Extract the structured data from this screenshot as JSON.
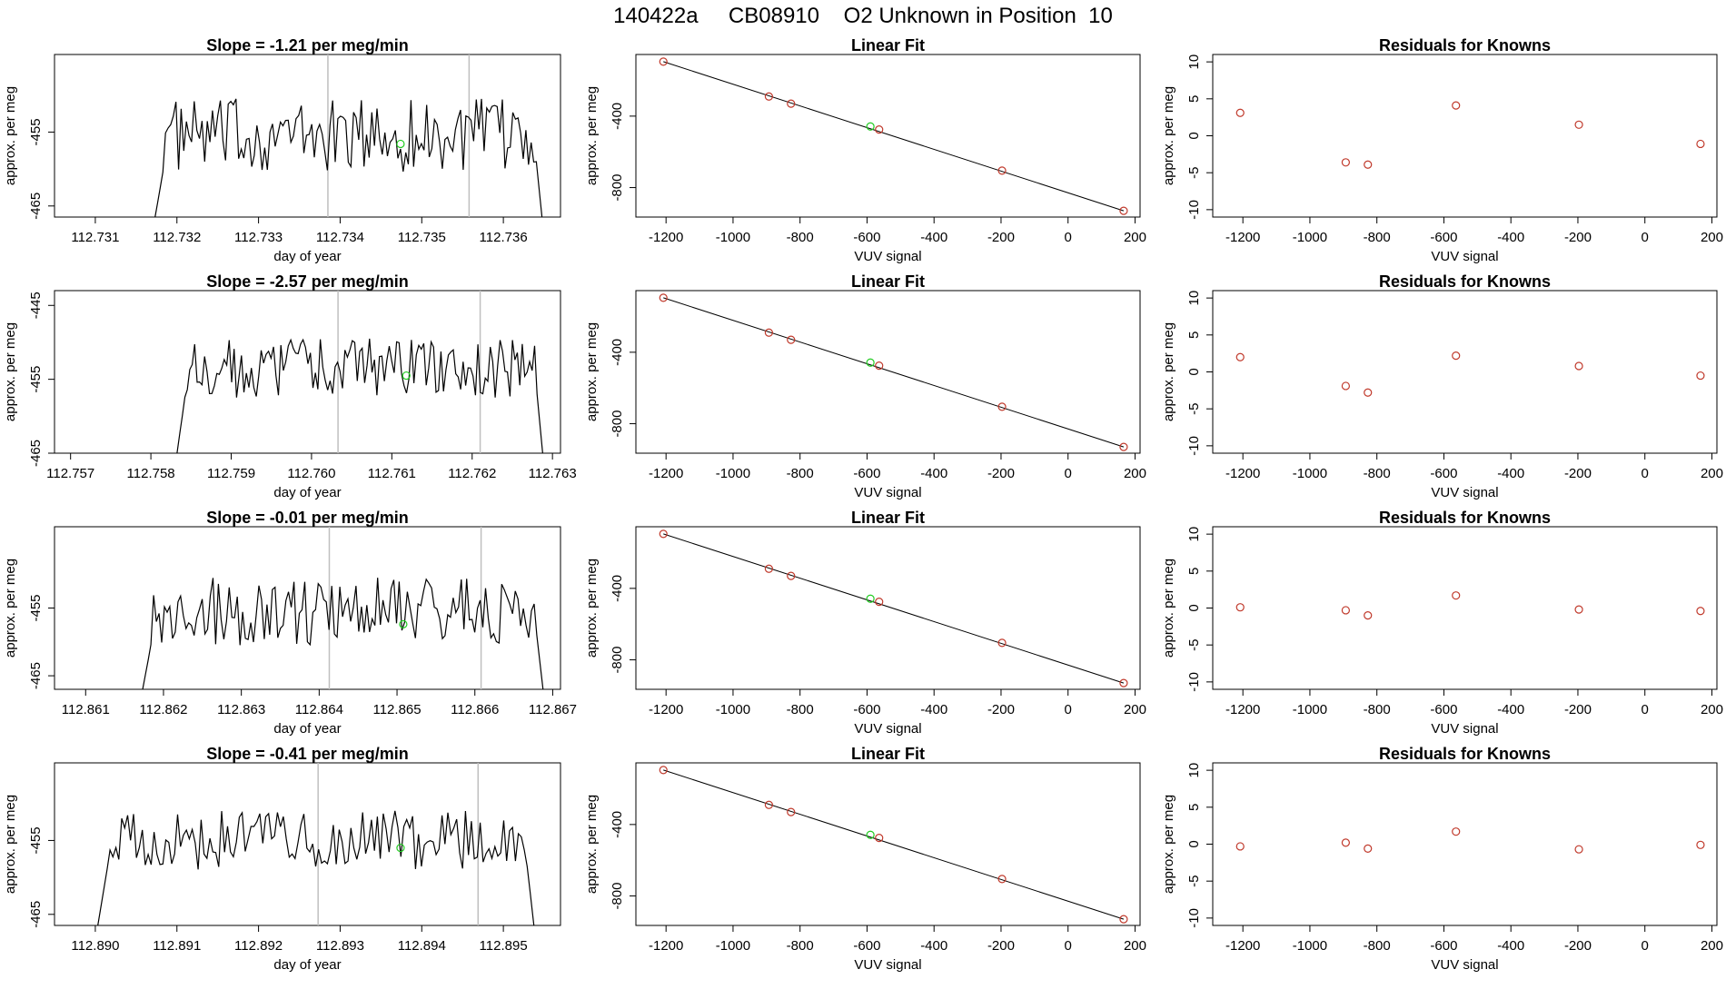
{
  "page_title": "140422a     CB08910    O2 Unknown in Position  10",
  "colors": {
    "trace": "#000000",
    "unknown_point": "#22cc22",
    "known_point": "#c0392b",
    "marker_line": "#bfbfbf"
  },
  "chart_data": [
    {
      "type": "line",
      "title": "Slope =  -1.21  per meg/min",
      "xlabel": "day of year",
      "ylabel": "approx. per meg",
      "xlim": [
        112.7305,
        112.7367
      ],
      "ylim": [
        -466.5,
        -444.5
      ],
      "xticks": [
        "112.731",
        "112.732",
        "112.733",
        "112.734",
        "112.735",
        "112.736"
      ],
      "yticks": [
        "-455",
        "-465"
      ],
      "trace_start": 112.7317,
      "trace_end": 112.7365,
      "trace_level": -455.5,
      "trace_amp": 5,
      "markers": [
        112.73385,
        112.73558
      ],
      "unknown_point": {
        "x": 112.73474,
        "y": -456.6
      }
    },
    {
      "type": "scatter",
      "title": "Linear Fit",
      "xlabel": "VUV signal",
      "ylabel": "approx. per meg",
      "xlim": [
        -1290,
        215
      ],
      "ylim": [
        -965,
        -55
      ],
      "xticks": [
        "-1200",
        "-1000",
        "-800",
        "-600",
        "-400",
        "-200",
        "0",
        "200"
      ],
      "yticks": [
        "-400",
        "-800"
      ],
      "knowns": [
        [
          -1208,
          -95
        ],
        [
          -893,
          -290
        ],
        [
          -827,
          -330
        ],
        [
          -564,
          -475
        ],
        [
          -197,
          -705
        ],
        [
          166,
          -930
        ]
      ],
      "fit_line": [
        [
          -1208,
          -95
        ],
        [
          166,
          -930
        ]
      ],
      "unknown_point": [
        -590,
        -458
      ]
    },
    {
      "type": "scatter",
      "title": "Residuals for Knowns",
      "xlabel": "VUV signal",
      "ylabel": "approx. per meg",
      "xlim": [
        -1290,
        215
      ],
      "ylim": [
        -11,
        11
      ],
      "xticks": [
        "-1200",
        "-1000",
        "-800",
        "-600",
        "-400",
        "-200",
        "0",
        "200"
      ],
      "yticks": [
        "10",
        "5",
        "0",
        "-5",
        "-10"
      ],
      "residuals": [
        [
          -1208,
          3.1
        ],
        [
          -893,
          -3.6
        ],
        [
          -827,
          -3.9
        ],
        [
          -564,
          4.1
        ],
        [
          -197,
          1.5
        ],
        [
          166,
          -1.1
        ]
      ]
    },
    {
      "type": "line",
      "title": "Slope =  -2.57  per meg/min",
      "xlabel": "day of year",
      "ylabel": "approx. per meg",
      "xlim": [
        112.7568,
        112.7631
      ],
      "ylim": [
        -465,
        -443
      ],
      "xticks": [
        "112.757",
        "112.758",
        "112.759",
        "112.760",
        "112.761",
        "112.762",
        "112.763"
      ],
      "yticks": [
        "-445",
        "-455",
        "-465"
      ],
      "trace_start": 112.7583,
      "trace_end": 112.7629,
      "trace_level": -453.5,
      "trace_amp": 4,
      "markers": [
        112.76033,
        112.7621
      ],
      "unknown_point": {
        "x": 112.76118,
        "y": -454.5
      }
    },
    {
      "type": "scatter",
      "title": "Linear Fit",
      "xlabel": "VUV signal",
      "ylabel": "approx. per meg",
      "xlim": [
        -1290,
        215
      ],
      "ylim": [
        -965,
        -55
      ],
      "xticks": [
        "-1200",
        "-1000",
        "-800",
        "-600",
        "-400",
        "-200",
        "0",
        "200"
      ],
      "yticks": [
        "-400",
        "-800"
      ],
      "knowns": [
        [
          -1208,
          -95
        ],
        [
          -893,
          -290
        ],
        [
          -827,
          -330
        ],
        [
          -564,
          -475
        ],
        [
          -197,
          -705
        ],
        [
          166,
          -930
        ]
      ],
      "fit_line": [
        [
          -1208,
          -95
        ],
        [
          166,
          -930
        ]
      ],
      "unknown_point": [
        -590,
        -458
      ]
    },
    {
      "type": "scatter",
      "title": "Residuals for Knowns",
      "xlabel": "VUV signal",
      "ylabel": "approx. per meg",
      "xlim": [
        -1290,
        215
      ],
      "ylim": [
        -11,
        11
      ],
      "xticks": [
        "-1200",
        "-1000",
        "-800",
        "-600",
        "-400",
        "-200",
        "0",
        "200"
      ],
      "yticks": [
        "10",
        "5",
        "0",
        "-5",
        "-10"
      ],
      "residuals": [
        [
          -1208,
          2.0
        ],
        [
          -893,
          -1.9
        ],
        [
          -827,
          -2.8
        ],
        [
          -564,
          2.2
        ],
        [
          -197,
          0.8
        ],
        [
          166,
          -0.5
        ]
      ]
    },
    {
      "type": "line",
      "title": "Slope =  -0.01  per meg/min",
      "xlabel": "day of year",
      "ylabel": "approx. per meg",
      "xlim": [
        112.8606,
        112.8671
      ],
      "ylim": [
        -467,
        -443
      ],
      "xticks": [
        "112.861",
        "112.862",
        "112.863",
        "112.864",
        "112.865",
        "112.866",
        "112.867"
      ],
      "yticks": [
        "-455",
        "-465"
      ],
      "trace_start": 112.8617,
      "trace_end": 112.8669,
      "trace_level": -455.5,
      "trace_amp": 5,
      "markers": [
        112.86413,
        112.86608
      ],
      "unknown_point": {
        "x": 112.86508,
        "y": -457.4
      }
    },
    {
      "type": "scatter",
      "title": "Linear Fit",
      "xlabel": "VUV signal",
      "ylabel": "approx. per meg",
      "xlim": [
        -1290,
        215
      ],
      "ylim": [
        -965,
        -55
      ],
      "xticks": [
        "-1200",
        "-1000",
        "-800",
        "-600",
        "-400",
        "-200",
        "0",
        "200"
      ],
      "yticks": [
        "-400",
        "-800"
      ],
      "knowns": [
        [
          -1208,
          -95
        ],
        [
          -893,
          -290
        ],
        [
          -827,
          -330
        ],
        [
          -564,
          -475
        ],
        [
          -197,
          -705
        ],
        [
          166,
          -930
        ]
      ],
      "fit_line": [
        [
          -1208,
          -95
        ],
        [
          166,
          -930
        ]
      ],
      "unknown_point": [
        -590,
        -458
      ]
    },
    {
      "type": "scatter",
      "title": "Residuals for Knowns",
      "xlabel": "VUV signal",
      "ylabel": "approx. per meg",
      "xlim": [
        -1290,
        215
      ],
      "ylim": [
        -11,
        11
      ],
      "xticks": [
        "-1200",
        "-1000",
        "-800",
        "-600",
        "-400",
        "-200",
        "0",
        "200"
      ],
      "yticks": [
        "10",
        "5",
        "0",
        "-5",
        "-10"
      ],
      "residuals": [
        [
          -1208,
          0.1
        ],
        [
          -893,
          -0.3
        ],
        [
          -827,
          -1.0
        ],
        [
          -564,
          1.7
        ],
        [
          -197,
          -0.2
        ],
        [
          166,
          -0.4
        ]
      ]
    },
    {
      "type": "line",
      "title": "Slope =  -0.41  per meg/min",
      "xlabel": "day of year",
      "ylabel": "approx. per meg",
      "xlim": [
        112.8895,
        112.8957
      ],
      "ylim": [
        -466.5,
        -444.5
      ],
      "xticks": [
        "112.890",
        "112.891",
        "112.892",
        "112.893",
        "112.894",
        "112.895"
      ],
      "yticks": [
        "-455",
        "-465"
      ],
      "trace_start": 112.89,
      "trace_end": 112.8954,
      "trace_level": -455.0,
      "trace_amp": 4,
      "markers": [
        112.89273,
        112.89469
      ],
      "unknown_point": {
        "x": 112.89374,
        "y": -456.0
      }
    },
    {
      "type": "scatter",
      "title": "Linear Fit",
      "xlabel": "VUV signal",
      "ylabel": "approx. per meg",
      "xlim": [
        -1290,
        215
      ],
      "ylim": [
        -965,
        -55
      ],
      "xticks": [
        "-1200",
        "-1000",
        "-800",
        "-600",
        "-400",
        "-200",
        "0",
        "200"
      ],
      "yticks": [
        "-400",
        "-800"
      ],
      "knowns": [
        [
          -1208,
          -95
        ],
        [
          -893,
          -290
        ],
        [
          -827,
          -330
        ],
        [
          -564,
          -475
        ],
        [
          -197,
          -705
        ],
        [
          166,
          -930
        ]
      ],
      "fit_line": [
        [
          -1208,
          -95
        ],
        [
          166,
          -930
        ]
      ],
      "unknown_point": [
        -590,
        -458
      ]
    },
    {
      "type": "scatter",
      "title": "Residuals for Knowns",
      "xlabel": "VUV signal",
      "ylabel": "approx. per meg",
      "xlim": [
        -1290,
        215
      ],
      "ylim": [
        -11,
        11
      ],
      "xticks": [
        "-1200",
        "-1000",
        "-800",
        "-600",
        "-400",
        "-200",
        "0",
        "200"
      ],
      "yticks": [
        "10",
        "5",
        "0",
        "-5",
        "-10"
      ],
      "residuals": [
        [
          -1208,
          -0.3
        ],
        [
          -893,
          0.2
        ],
        [
          -827,
          -0.6
        ],
        [
          -564,
          1.7
        ],
        [
          -197,
          -0.7
        ],
        [
          166,
          -0.1
        ]
      ]
    }
  ]
}
